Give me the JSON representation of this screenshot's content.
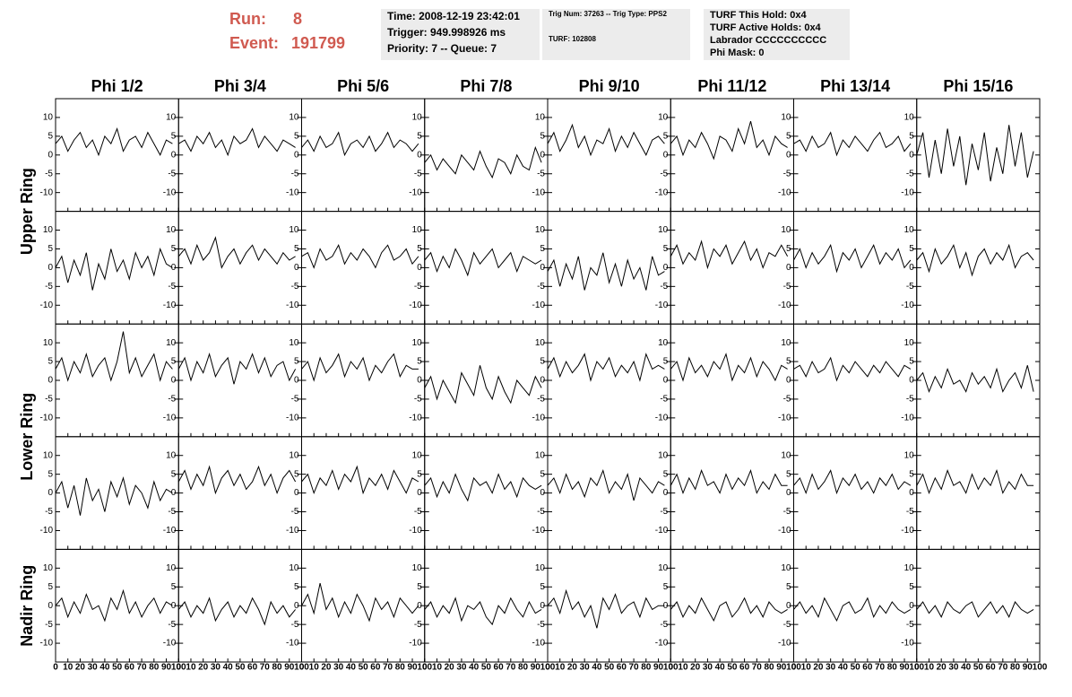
{
  "header": {
    "run_label": "Run:",
    "run": "8",
    "event_label": "Event:",
    "event": "191799"
  },
  "info": [
    [
      "Time: 2008-12-19 23:42:01",
      "Trigger: 949.998926 ms",
      "Priority: 7 -- Queue: 7"
    ],
    [
      "Trig Num: 37263 -- Trig Type: PPS2",
      "TURF: 102808"
    ],
    [
      "TURF This Hold: 0x4",
      "TURF Active Holds: 0x4",
      "Labrador CCCCCCCCCC",
      "Phi Mask: 0"
    ]
  ],
  "columns": [
    "Phi 1/2",
    "Phi 3/4",
    "Phi 5/6",
    "Phi 7/8",
    "Phi 9/10",
    "Phi 11/12",
    "Phi 13/14",
    "Phi 15/16"
  ],
  "ring_labels": [
    "Upper Ring",
    "Lower Ring",
    "Nadir Ring"
  ],
  "xlim": [
    0,
    100
  ],
  "ylim": [
    -15,
    15
  ],
  "xticks": [
    0,
    10,
    20,
    30,
    40,
    50,
    60,
    70,
    80,
    90,
    100
  ],
  "yticks": [
    -10,
    -5,
    0,
    5,
    10
  ],
  "x": [
    0,
    5,
    10,
    15,
    20,
    25,
    30,
    35,
    40,
    45,
    50,
    55,
    60,
    65,
    70,
    75,
    80,
    85,
    90,
    95
  ],
  "panels": [
    [
      [
        3,
        5,
        1,
        4,
        6,
        2,
        4,
        0,
        5,
        3,
        7,
        1,
        4,
        5,
        2,
        6,
        3,
        0,
        4,
        3
      ],
      [
        3,
        4,
        1,
        5,
        3,
        6,
        2,
        4,
        0,
        5,
        3,
        4,
        7,
        2,
        5,
        3,
        1,
        4,
        3,
        2
      ],
      [
        2,
        4,
        1,
        5,
        2,
        3,
        6,
        0,
        3,
        4,
        2,
        5,
        1,
        3,
        6,
        2,
        4,
        3,
        1,
        3
      ],
      [
        -2,
        0,
        -4,
        -1,
        -3,
        -5,
        0,
        -2,
        -4,
        1,
        -3,
        -6,
        -1,
        -2,
        -5,
        0,
        -3,
        -4,
        2,
        -2
      ],
      [
        3,
        6,
        1,
        4,
        8,
        2,
        5,
        0,
        4,
        3,
        7,
        1,
        5,
        2,
        6,
        3,
        0,
        4,
        5,
        3
      ],
      [
        3,
        5,
        0,
        4,
        2,
        6,
        3,
        -1,
        5,
        4,
        1,
        7,
        3,
        9,
        2,
        4,
        0,
        5,
        3,
        2
      ],
      [
        3,
        4,
        1,
        5,
        2,
        3,
        6,
        0,
        4,
        2,
        5,
        3,
        1,
        4,
        6,
        2,
        3,
        5,
        1,
        3
      ],
      [
        0,
        6,
        -6,
        4,
        -5,
        7,
        -3,
        5,
        -8,
        3,
        -4,
        6,
        -7,
        2,
        -5,
        8,
        -3,
        6,
        -6,
        1
      ]
    ],
    [
      [
        0,
        3,
        -4,
        2,
        -2,
        4,
        -6,
        1,
        -3,
        5,
        -1,
        2,
        -3,
        4,
        0,
        3,
        -2,
        5,
        1,
        0
      ],
      [
        3,
        5,
        1,
        6,
        2,
        4,
        8,
        0,
        3,
        5,
        1,
        4,
        6,
        2,
        5,
        3,
        1,
        4,
        2,
        3
      ],
      [
        3,
        4,
        0,
        5,
        2,
        3,
        6,
        1,
        4,
        2,
        5,
        3,
        0,
        4,
        6,
        2,
        3,
        5,
        1,
        3
      ],
      [
        2,
        4,
        -1,
        3,
        0,
        5,
        2,
        -2,
        4,
        1,
        3,
        5,
        0,
        2,
        4,
        -1,
        3,
        2,
        1,
        2
      ],
      [
        -1,
        2,
        -5,
        1,
        -3,
        3,
        -6,
        0,
        -2,
        4,
        -4,
        1,
        -5,
        2,
        -3,
        0,
        -6,
        3,
        -2,
        -1
      ],
      [
        3,
        6,
        1,
        4,
        2,
        7,
        0,
        5,
        3,
        6,
        1,
        4,
        7,
        2,
        5,
        0,
        4,
        3,
        6,
        3
      ],
      [
        2,
        5,
        0,
        4,
        1,
        3,
        6,
        -1,
        4,
        2,
        5,
        0,
        3,
        6,
        1,
        4,
        2,
        5,
        0,
        2
      ],
      [
        2,
        4,
        -1,
        5,
        1,
        3,
        6,
        0,
        4,
        -2,
        3,
        5,
        1,
        4,
        2,
        6,
        0,
        3,
        4,
        2
      ]
    ],
    [
      [
        3,
        6,
        0,
        5,
        2,
        7,
        1,
        4,
        6,
        0,
        5,
        13,
        2,
        6,
        1,
        4,
        7,
        0,
        5,
        3
      ],
      [
        3,
        6,
        0,
        5,
        2,
        7,
        1,
        4,
        6,
        -1,
        5,
        3,
        7,
        2,
        6,
        1,
        4,
        5,
        0,
        3
      ],
      [
        3,
        5,
        0,
        6,
        2,
        4,
        7,
        1,
        5,
        3,
        6,
        0,
        4,
        2,
        5,
        7,
        1,
        4,
        3,
        3
      ],
      [
        -2,
        1,
        -5,
        0,
        -3,
        -6,
        2,
        -1,
        -4,
        4,
        -2,
        -5,
        1,
        -3,
        -6,
        0,
        -2,
        -4,
        1,
        -2
      ],
      [
        3,
        6,
        1,
        5,
        2,
        4,
        7,
        0,
        5,
        3,
        6,
        1,
        4,
        2,
        5,
        0,
        7,
        3,
        4,
        3
      ],
      [
        3,
        5,
        0,
        6,
        2,
        4,
        1,
        5,
        3,
        7,
        0,
        4,
        2,
        6,
        1,
        5,
        3,
        0,
        4,
        3
      ],
      [
        3,
        4,
        1,
        5,
        2,
        3,
        6,
        0,
        4,
        2,
        5,
        3,
        1,
        4,
        2,
        5,
        3,
        1,
        4,
        3
      ],
      [
        0,
        2,
        -3,
        1,
        -2,
        3,
        -1,
        0,
        -3,
        2,
        -1,
        1,
        -2,
        3,
        -3,
        0,
        2,
        -2,
        4,
        -3
      ]
    ],
    [
      [
        0,
        3,
        -4,
        2,
        -6,
        4,
        -2,
        1,
        -5,
        3,
        -1,
        4,
        -3,
        2,
        0,
        -4,
        3,
        -2,
        1,
        0
      ],
      [
        3,
        6,
        1,
        5,
        2,
        7,
        0,
        4,
        6,
        2,
        5,
        1,
        3,
        7,
        2,
        5,
        0,
        4,
        6,
        3
      ],
      [
        3,
        5,
        0,
        4,
        2,
        6,
        1,
        5,
        3,
        7,
        0,
        4,
        2,
        5,
        1,
        6,
        3,
        0,
        4,
        3
      ],
      [
        2,
        4,
        -1,
        3,
        0,
        5,
        1,
        -2,
        4,
        2,
        3,
        0,
        5,
        1,
        3,
        -1,
        4,
        2,
        1,
        2
      ],
      [
        2,
        4,
        0,
        5,
        1,
        3,
        -1,
        4,
        2,
        6,
        0,
        3,
        1,
        5,
        -2,
        4,
        2,
        0,
        3,
        2
      ],
      [
        2,
        5,
        0,
        4,
        1,
        6,
        2,
        3,
        0,
        5,
        1,
        4,
        2,
        6,
        0,
        3,
        1,
        5,
        2,
        2
      ],
      [
        2,
        4,
        0,
        5,
        1,
        3,
        6,
        0,
        4,
        2,
        5,
        1,
        3,
        0,
        4,
        2,
        5,
        1,
        3,
        2
      ],
      [
        2,
        5,
        0,
        4,
        1,
        6,
        2,
        3,
        0,
        5,
        1,
        4,
        2,
        6,
        0,
        3,
        1,
        5,
        2,
        2
      ]
    ],
    [
      [
        0,
        2,
        -3,
        1,
        -2,
        3,
        -1,
        0,
        -4,
        2,
        -1,
        4,
        -2,
        1,
        -3,
        0,
        2,
        -2,
        1,
        0
      ],
      [
        -1,
        1,
        -3,
        0,
        -2,
        2,
        -4,
        -1,
        1,
        -3,
        0,
        -2,
        2,
        -1,
        -5,
        1,
        -2,
        0,
        -3,
        -1
      ],
      [
        0,
        3,
        -2,
        6,
        -1,
        2,
        -3,
        1,
        -2,
        3,
        0,
        -4,
        2,
        -1,
        1,
        -3,
        2,
        0,
        -2,
        0
      ],
      [
        -1,
        1,
        -3,
        0,
        -2,
        2,
        -4,
        0,
        -1,
        1,
        -3,
        -5,
        0,
        -2,
        2,
        -1,
        -3,
        1,
        -2,
        -1
      ],
      [
        0,
        2,
        -2,
        4,
        -1,
        1,
        -3,
        0,
        -6,
        2,
        -1,
        3,
        -2,
        0,
        1,
        -3,
        2,
        -1,
        0,
        0
      ],
      [
        -1,
        1,
        -3,
        0,
        -2,
        2,
        -1,
        -4,
        0,
        1,
        -3,
        -1,
        2,
        -2,
        0,
        -3,
        1,
        -1,
        -2,
        -1
      ],
      [
        -1,
        1,
        -2,
        0,
        -3,
        2,
        -1,
        -4,
        0,
        1,
        -2,
        -1,
        2,
        -3,
        0,
        -2,
        1,
        -1,
        -2,
        -1
      ],
      [
        -1,
        1,
        -2,
        0,
        -3,
        1,
        -1,
        -2,
        0,
        1,
        -3,
        -1,
        1,
        -2,
        0,
        -3,
        1,
        -1,
        -2,
        -1
      ]
    ]
  ]
}
